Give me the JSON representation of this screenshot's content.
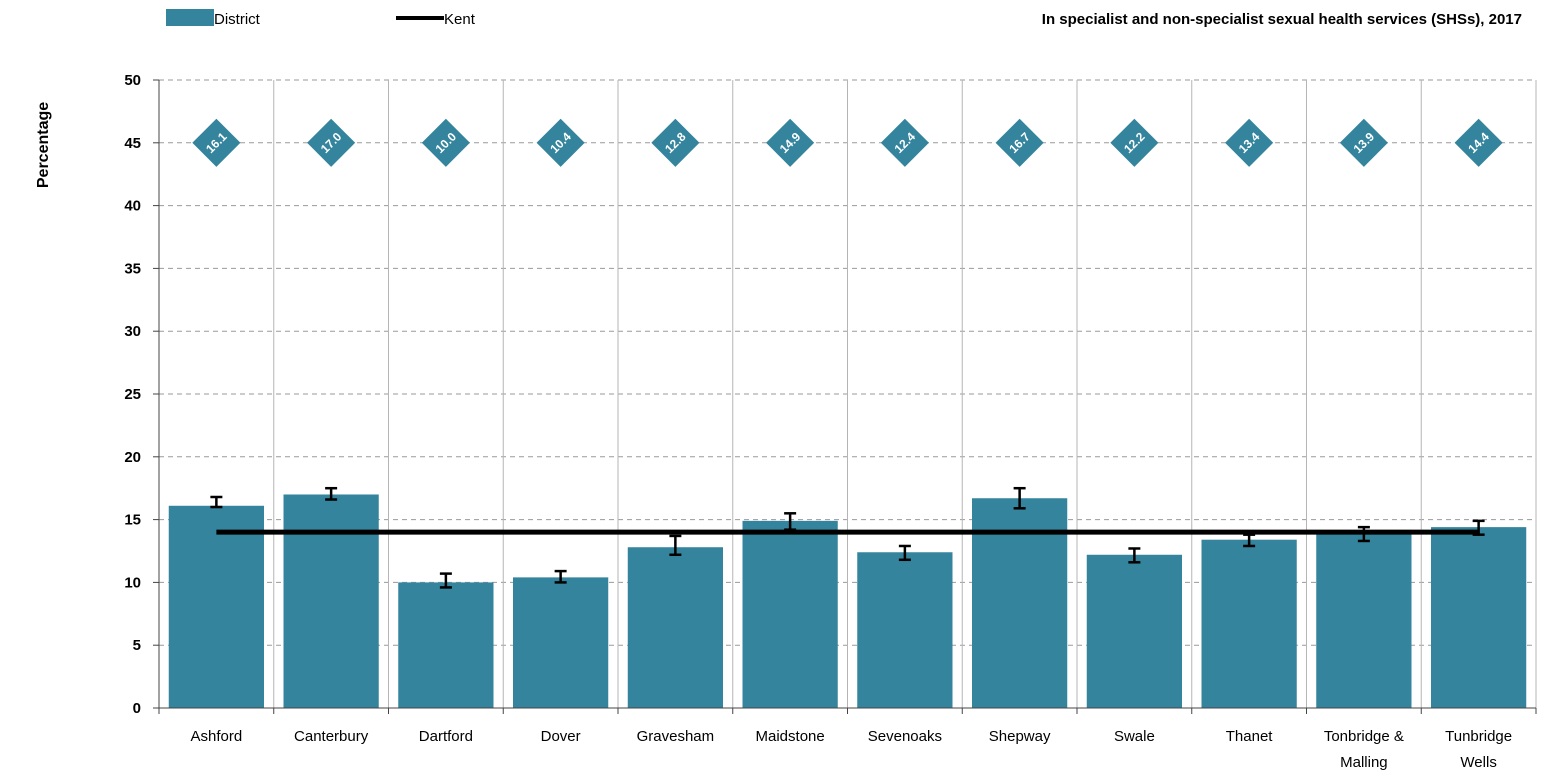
{
  "chart_data": {
    "type": "bar",
    "title": "In specialist and non-specialist sexual health services (SHSs), 2017",
    "ylabel": "Percentage",
    "xlabel": "",
    "ylim": [
      0,
      50
    ],
    "yticks": [
      0,
      5,
      10,
      15,
      20,
      25,
      30,
      35,
      40,
      45,
      50
    ],
    "grid": true,
    "legend_position": "top-left",
    "categories": [
      [
        "Ashford"
      ],
      [
        "Canterbury"
      ],
      [
        "Dartford"
      ],
      [
        "Dover"
      ],
      [
        "Gravesham"
      ],
      [
        "Maidstone"
      ],
      [
        "Sevenoaks"
      ],
      [
        "Shepway"
      ],
      [
        "Swale"
      ],
      [
        "Thanet"
      ],
      [
        "Tonbridge &",
        "Malling"
      ],
      [
        "Tunbridge",
        "Wells"
      ]
    ],
    "series": [
      {
        "name": "District",
        "color": "#33849c",
        "values": [
          16.1,
          17.0,
          10.0,
          10.4,
          12.8,
          14.9,
          12.4,
          16.7,
          12.2,
          13.4,
          13.9,
          14.4
        ],
        "ci_low": [
          16.0,
          16.6,
          9.6,
          10.0,
          12.2,
          14.2,
          11.8,
          15.9,
          11.6,
          12.9,
          13.3,
          13.8
        ],
        "ci_high": [
          16.8,
          17.5,
          10.7,
          10.9,
          13.7,
          15.5,
          12.9,
          17.5,
          12.7,
          13.8,
          14.4,
          14.9
        ],
        "data_labels": [
          "16.1",
          "17.0",
          "10.0",
          "10.4",
          "12.8",
          "14.9",
          "12.4",
          "16.7",
          "12.2",
          "13.4",
          "13.9",
          "14.4"
        ],
        "data_label_y": 45
      },
      {
        "name": "Kent",
        "type": "line",
        "color": "#000000",
        "value": 14.0
      }
    ]
  }
}
